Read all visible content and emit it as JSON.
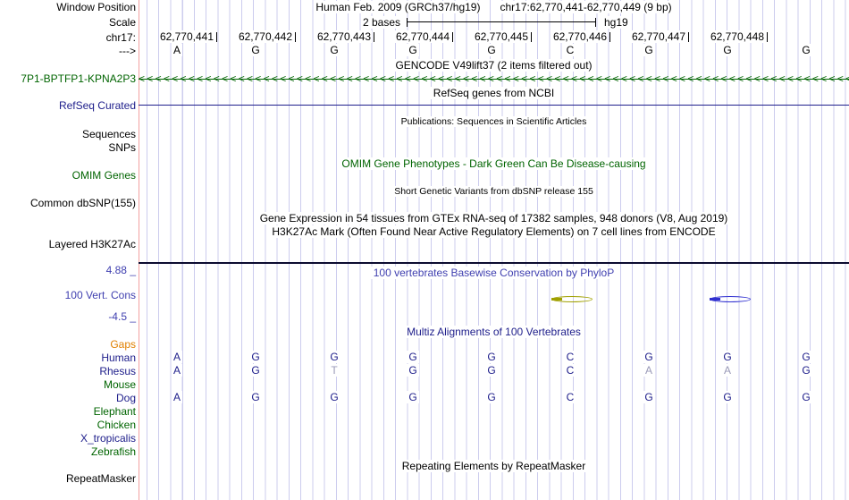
{
  "palette": {
    "track_green": "#006400",
    "track_navy": "#20208c",
    "header_blue": "#4040b0",
    "gaps_orange": "#e08000",
    "dim_base": "#9a9ab8",
    "gridline": "#ccccee",
    "gutter_divider_pink": "#f2a0a0",
    "phylop_item_olive": "#a0a000",
    "phylop_item_blue": "#3030d0"
  },
  "title": {
    "assembly": "Human Feb. 2009 (GRCh37/hg19)",
    "position": "chr17:62,770,441-62,770,449 (9 bp)"
  },
  "gutter": {
    "window_position": "Window Position",
    "scale": "Scale",
    "chrom": "chr17:",
    "direction": "--->",
    "gene_name": "7P1-BPTFP1-KPNA2P3",
    "refseq_curated": "RefSeq Curated",
    "sequences": "Sequences",
    "snps": "SNPs",
    "omim_genes": "OMIM Genes",
    "common_dbsnp": "Common dbSNP(155)",
    "layered_h3k27ac": "Layered H3K27Ac",
    "cons_max": "4.88 _",
    "cons_label": "100 Vert. Cons",
    "cons_min": "-4.5 _",
    "repeatmasker": "RepeatMasker"
  },
  "scale_bar": {
    "label": "2 bases",
    "assembly": "hg19"
  },
  "ruler": {
    "positions": [
      "62,770,441",
      "62,770,442",
      "62,770,443",
      "62,770,444",
      "62,770,445",
      "62,770,446",
      "62,770,447",
      "62,770,448"
    ],
    "bases": [
      "A",
      "G",
      "G",
      "G",
      "G",
      "C",
      "G",
      "G",
      "G"
    ]
  },
  "headers": {
    "gencode": "GENCODE V49lift37 (2 items filtered out)",
    "refseq": "RefSeq genes from NCBI",
    "publications": "Publications: Sequences in Scientific Articles",
    "omim": "OMIM Gene Phenotypes - Dark Green Can Be Disease-causing",
    "dbsnp": "Short Genetic Variants from dbSNP release 155",
    "gtex": "Gene Expression in 54 tissues from GTEx RNA-seq of 17382 samples, 948 donors (V8, Aug 2019)",
    "h3k27ac": "H3K27Ac Mark (Often Found Near Active Regulatory Elements) on 7 cell lines from ENCODE",
    "phylop": "100 vertebrates Basewise Conservation by PhyloP",
    "multiz": "Multiz Alignments of 100 Vertebrates",
    "repeatmasker": "Repeating Elements by RepeatMasker"
  },
  "gene_track": {
    "strand_char": "<",
    "arrow_repeat": 90
  },
  "multiz": {
    "species": [
      {
        "label": "Gaps",
        "color": "orange"
      },
      {
        "label": "Human",
        "color": "navy",
        "bases": [
          "A",
          "G",
          "G",
          "G",
          "G",
          "C",
          "G",
          "G",
          "G"
        ],
        "dim": [
          0,
          0,
          0,
          0,
          0,
          0,
          0,
          0,
          0
        ]
      },
      {
        "label": "Rhesus",
        "color": "navy",
        "bases": [
          "A",
          "G",
          "T",
          "G",
          "G",
          "C",
          "A",
          "A",
          "G"
        ],
        "dim": [
          0,
          0,
          1,
          0,
          0,
          0,
          1,
          1,
          0
        ]
      },
      {
        "label": "Mouse",
        "color": "green"
      },
      {
        "label": "Dog",
        "color": "navy",
        "bases": [
          "A",
          "G",
          "G",
          "G",
          "G",
          "C",
          "G",
          "G",
          "G"
        ],
        "dim": [
          0,
          0,
          0,
          0,
          0,
          0,
          0,
          0,
          0
        ]
      },
      {
        "label": "Elephant",
        "color": "green"
      },
      {
        "label": "Chicken",
        "color": "green"
      },
      {
        "label": "X_tropicalis",
        "color": "navy"
      },
      {
        "label": "Zebrafish",
        "color": "green"
      }
    ]
  }
}
